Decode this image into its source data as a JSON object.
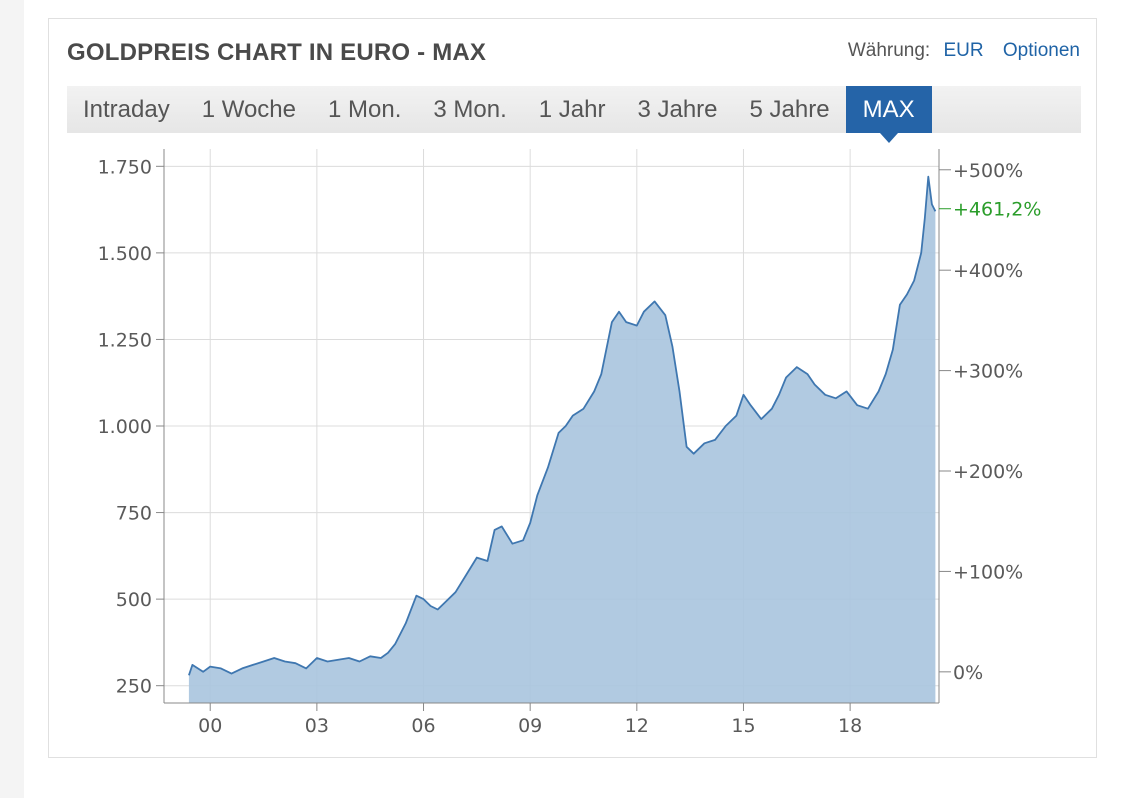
{
  "card": {
    "title": "GOLDPREIS CHART IN EURO - MAX",
    "currency_label": "Währung:",
    "currency_value": "EUR",
    "options_label": "Optionen"
  },
  "tabs": [
    {
      "label": "Intraday",
      "active": false
    },
    {
      "label": "1 Woche",
      "active": false
    },
    {
      "label": "1 Mon.",
      "active": false
    },
    {
      "label": "3 Mon.",
      "active": false
    },
    {
      "label": "1 Jahr",
      "active": false
    },
    {
      "label": "3 Jahre",
      "active": false
    },
    {
      "label": "5 Jahre",
      "active": false
    },
    {
      "label": "MAX",
      "active": true
    }
  ],
  "colors": {
    "line": "#3f77b0",
    "fill": "#a9c4de",
    "grid": "#dcdcdc",
    "current": "#2a9d2a"
  },
  "chart_data": {
    "type": "area",
    "x_unit": "year",
    "xlim": [
      1998.7,
      2020.5
    ],
    "ylim": [
      200,
      1800
    ],
    "x_ticks": [
      {
        "value": 2000,
        "label": "00"
      },
      {
        "value": 2003,
        "label": "03"
      },
      {
        "value": 2006,
        "label": "06"
      },
      {
        "value": 2009,
        "label": "09"
      },
      {
        "value": 2012,
        "label": "12"
      },
      {
        "value": 2015,
        "label": "15"
      },
      {
        "value": 2018,
        "label": "18"
      }
    ],
    "y_ticks": [
      {
        "value": 250,
        "label": "250"
      },
      {
        "value": 500,
        "label": "500"
      },
      {
        "value": 750,
        "label": "750"
      },
      {
        "value": 1000,
        "label": "1.000"
      },
      {
        "value": 1250,
        "label": "1.250"
      },
      {
        "value": 1500,
        "label": "1.500"
      },
      {
        "value": 1750,
        "label": "1.750"
      }
    ],
    "pct_ticks": [
      {
        "value": 0,
        "label": "0%"
      },
      {
        "value": 100,
        "label": "+100%"
      },
      {
        "value": 200,
        "label": "+200%"
      },
      {
        "value": 300,
        "label": "+300%"
      },
      {
        "value": 400,
        "label": "+400%"
      },
      {
        "value": 500,
        "label": "+500%"
      }
    ],
    "base_value": 290,
    "current_pct": {
      "value": 461.2,
      "label": "+461,2%"
    },
    "grid": true,
    "series": [
      {
        "x": [
          1999.4,
          1999.5,
          1999.8,
          2000.0,
          2000.3,
          2000.6,
          2000.9,
          2001.2,
          2001.5,
          2001.8,
          2002.1,
          2002.4,
          2002.7,
          2003.0,
          2003.3,
          2003.6,
          2003.9,
          2004.2,
          2004.5,
          2004.8,
          2005.0,
          2005.2,
          2005.5,
          2005.8,
          2006.0,
          2006.2,
          2006.4,
          2006.6,
          2006.9,
          2007.2,
          2007.5,
          2007.8,
          2008.0,
          2008.2,
          2008.5,
          2008.8,
          2009.0,
          2009.2,
          2009.5,
          2009.8,
          2010.0,
          2010.2,
          2010.5,
          2010.8,
          2011.0,
          2011.3,
          2011.5,
          2011.7,
          2012.0,
          2012.2,
          2012.5,
          2012.8,
          2013.0,
          2013.2,
          2013.4,
          2013.6,
          2013.9,
          2014.2,
          2014.5,
          2014.8,
          2015.0,
          2015.2,
          2015.5,
          2015.8,
          2016.0,
          2016.2,
          2016.5,
          2016.8,
          2017.0,
          2017.3,
          2017.6,
          2017.9,
          2018.2,
          2018.5,
          2018.8,
          2019.0,
          2019.2,
          2019.4,
          2019.6,
          2019.8,
          2020.0,
          2020.1,
          2020.2,
          2020.3,
          2020.4
        ],
        "y": [
          280,
          310,
          290,
          305,
          300,
          285,
          300,
          310,
          320,
          330,
          320,
          315,
          300,
          330,
          320,
          325,
          330,
          320,
          335,
          330,
          345,
          370,
          430,
          510,
          500,
          480,
          470,
          490,
          520,
          570,
          620,
          610,
          700,
          710,
          660,
          670,
          720,
          800,
          880,
          980,
          1000,
          1030,
          1050,
          1100,
          1150,
          1300,
          1330,
          1300,
          1290,
          1330,
          1360,
          1320,
          1230,
          1100,
          940,
          920,
          950,
          960,
          1000,
          1030,
          1090,
          1060,
          1020,
          1050,
          1090,
          1140,
          1170,
          1150,
          1120,
          1090,
          1080,
          1100,
          1060,
          1050,
          1100,
          1150,
          1220,
          1350,
          1380,
          1420,
          1500,
          1600,
          1720,
          1640,
          1620
        ]
      }
    ]
  }
}
